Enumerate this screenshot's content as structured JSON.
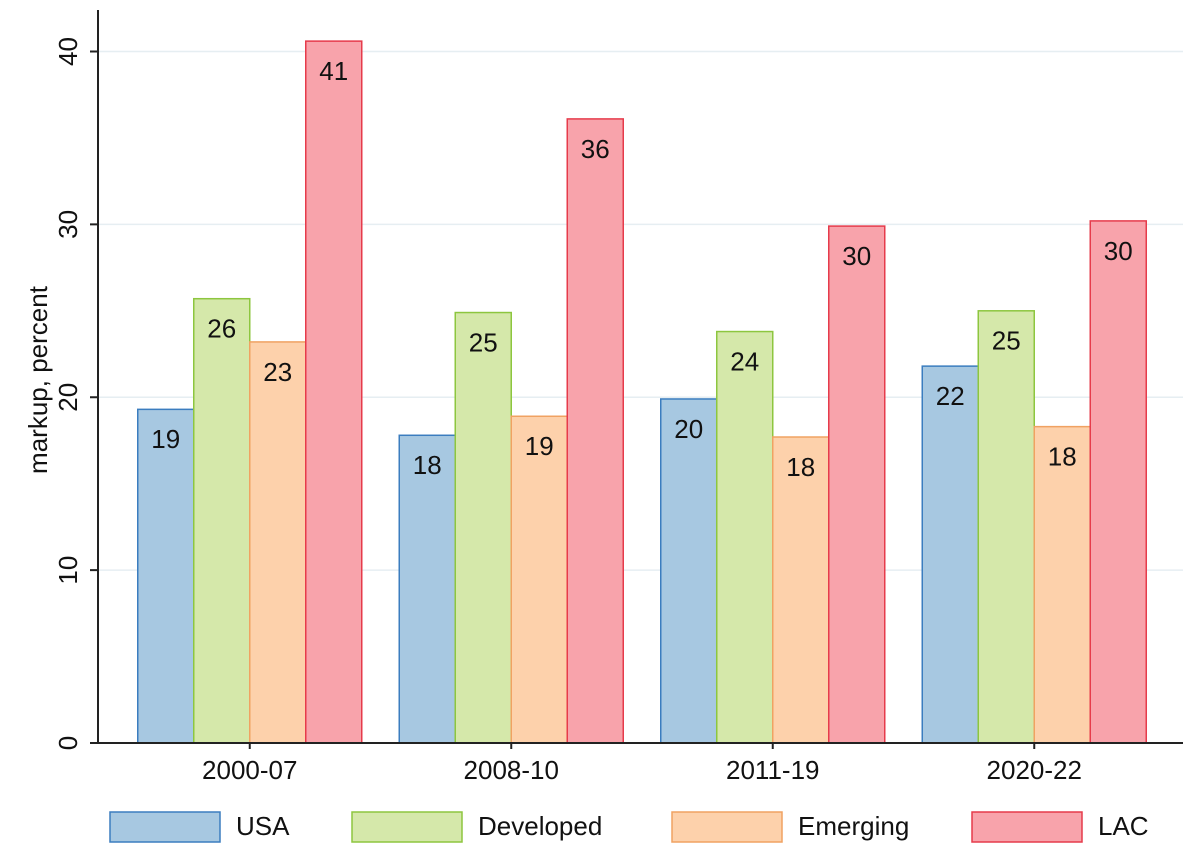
{
  "chart_data": {
    "type": "bar",
    "y_label": "markup, percent",
    "categories": [
      "2000-07",
      "2008-10",
      "2011-19",
      "2020-22"
    ],
    "series": [
      {
        "name": "USA",
        "color": "#a7c8e1",
        "values": [
          19.3,
          17.8,
          19.9,
          21.8
        ],
        "value_labels": [
          "19",
          "18",
          "20",
          "22"
        ]
      },
      {
        "name": "Developed",
        "color": "#d5e8aa",
        "values": [
          25.7,
          24.9,
          23.8,
          25.0
        ],
        "value_labels": [
          "26",
          "25",
          "24",
          "25"
        ]
      },
      {
        "name": "Emerging",
        "color": "#fdd1ab",
        "values": [
          23.2,
          18.9,
          17.7,
          18.3
        ],
        "value_labels": [
          "23",
          "19",
          "18",
          "18"
        ]
      },
      {
        "name": "LAC",
        "color": "#f8a3ab",
        "values": [
          40.6,
          36.1,
          29.9,
          30.2
        ],
        "value_labels": [
          "41",
          "36",
          "30",
          "30"
        ]
      }
    ],
    "ylim": [
      0,
      42.4
    ],
    "yticks": [
      0,
      10,
      20,
      30,
      40
    ],
    "grid": true
  }
}
